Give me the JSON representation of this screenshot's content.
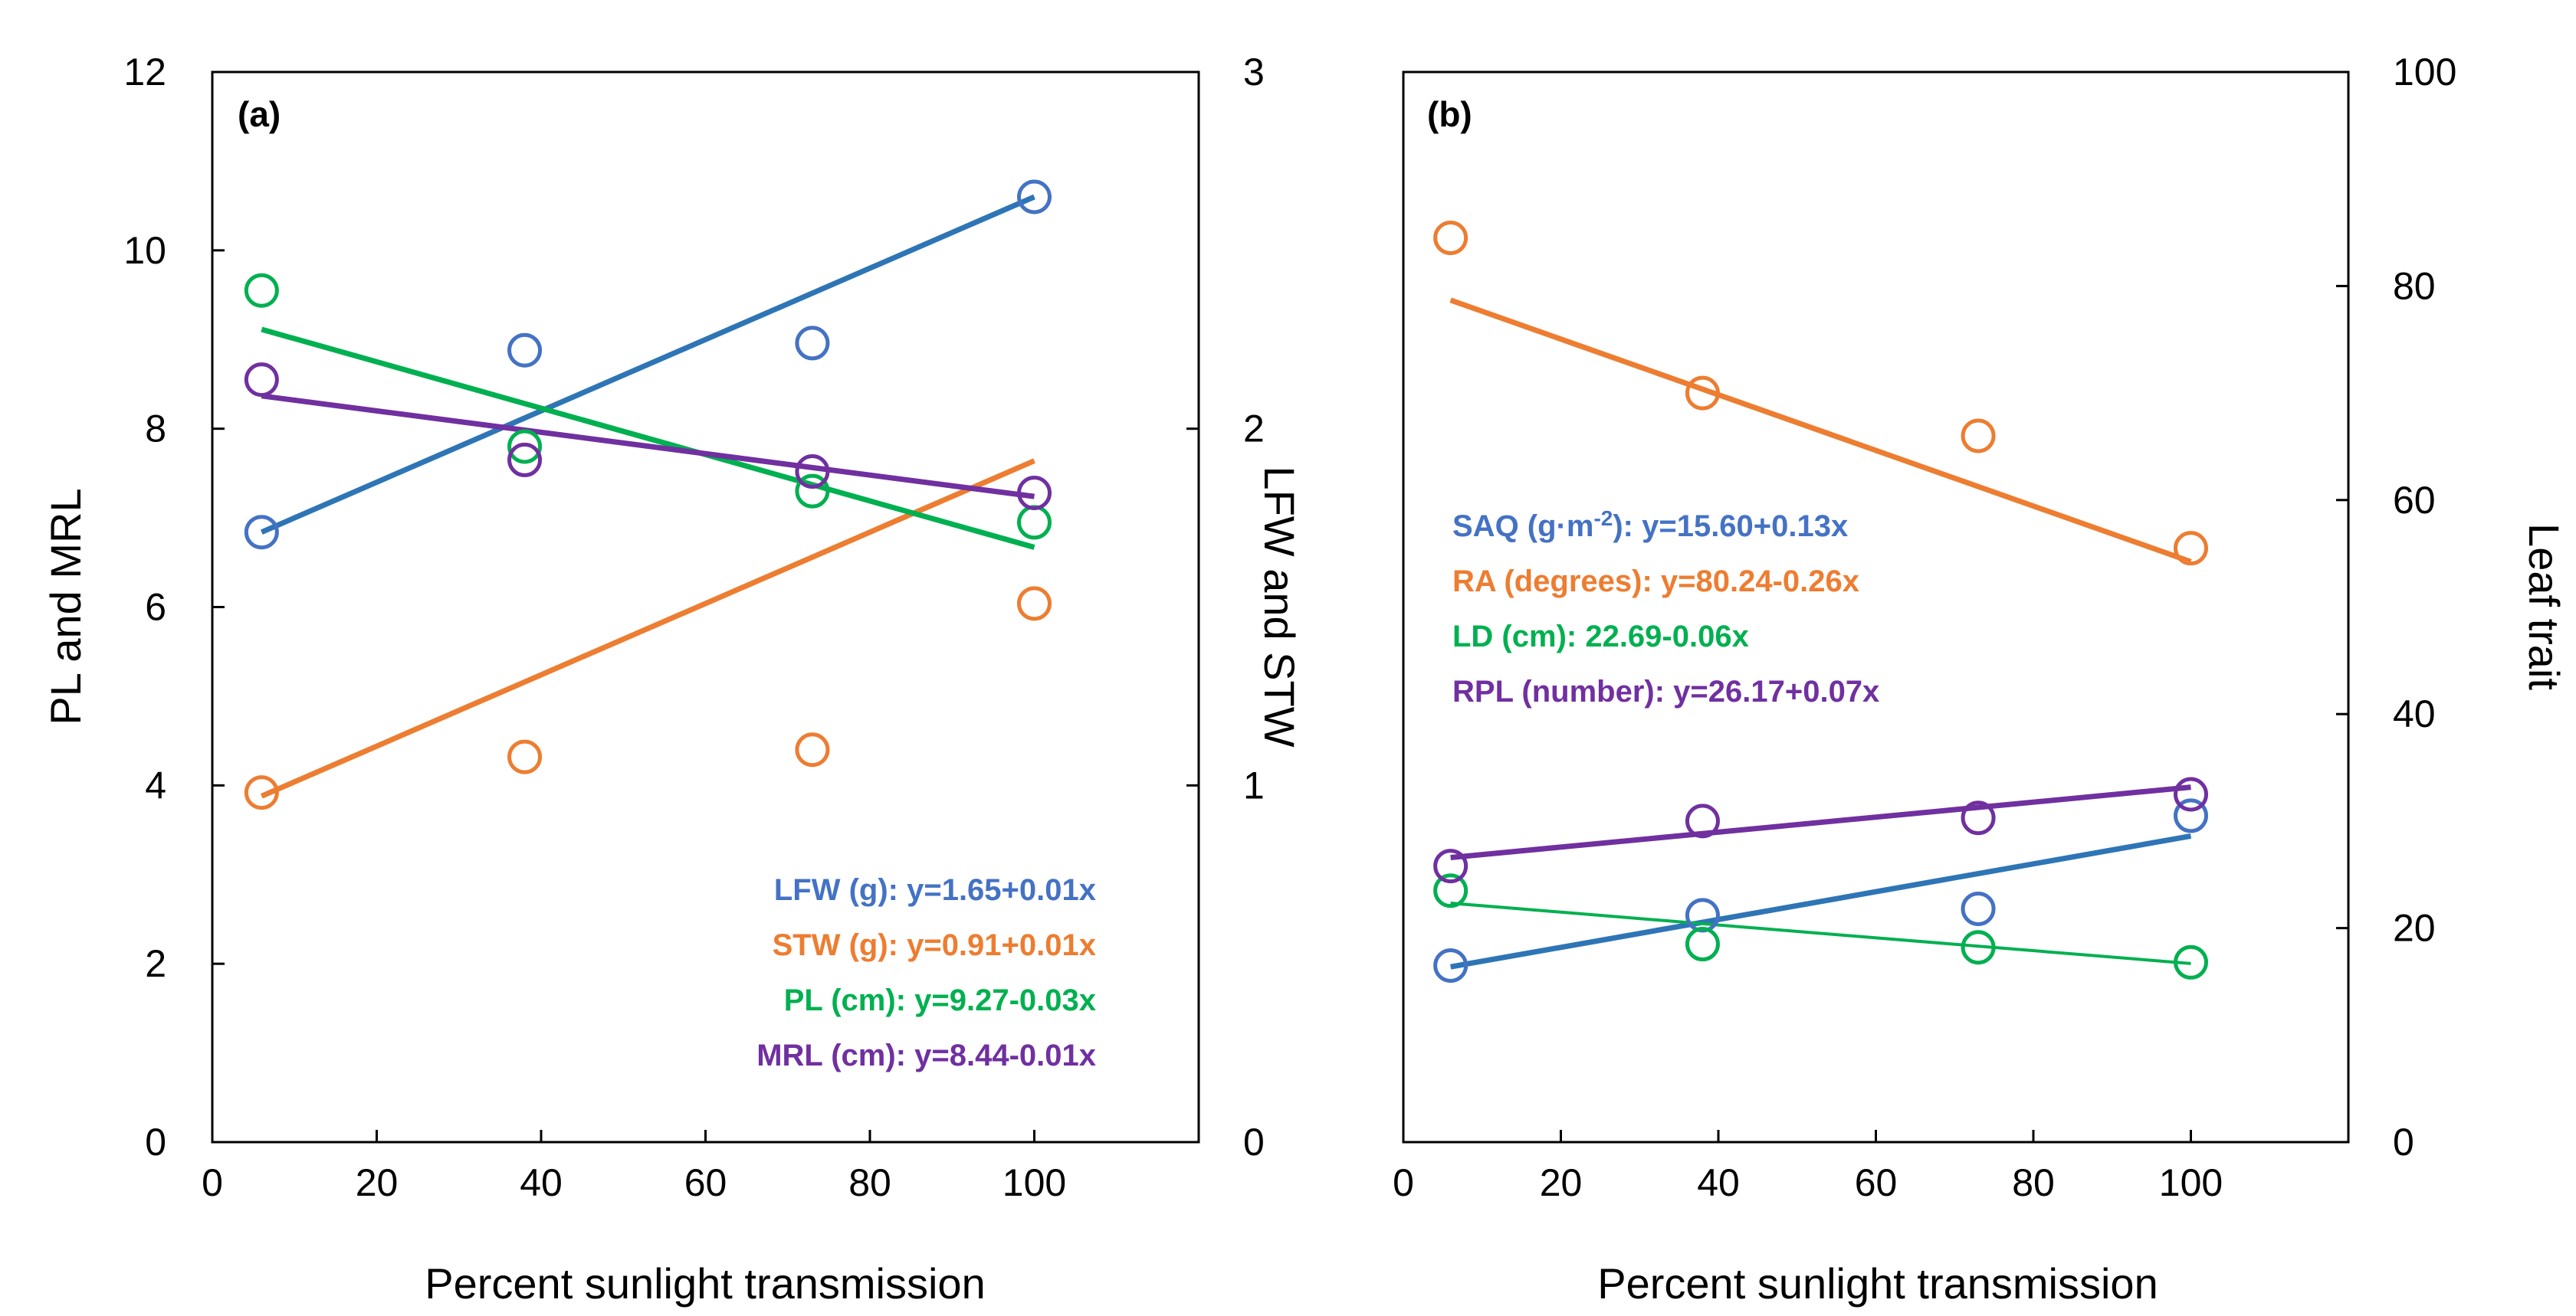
{
  "chart_data": [
    {
      "id": "a",
      "type": "scatter",
      "panel_label": "(a)",
      "xlabel": "Percent sunlight transmission",
      "ylabel_left": "PL and MRL",
      "ylabel_right": "LFW and STW",
      "xlim": [
        0,
        120
      ],
      "ylim_left": [
        0,
        12
      ],
      "ylim_right": [
        0,
        3
      ],
      "x_ticks": [
        0,
        20,
        40,
        60,
        80,
        100
      ],
      "x_tick_labels": [
        "0",
        "20",
        "40",
        "60",
        "80",
        "100"
      ],
      "y_left_ticks": [
        0,
        2,
        4,
        6,
        8,
        10,
        12
      ],
      "y_left_tick_labels": [
        "0",
        "2",
        "4",
        "6",
        "8",
        "10",
        "12"
      ],
      "y_right_ticks": [
        0,
        1,
        2,
        3
      ],
      "y_right_tick_labels": [
        "0",
        "1",
        "2",
        "3"
      ],
      "x": [
        6,
        38,
        73,
        100
      ],
      "series": [
        {
          "name": "LFW",
          "axis": "right",
          "color": "#4472C4",
          "line_color": "#2E75B6",
          "values": [
            1.71,
            2.22,
            2.24,
            2.65
          ],
          "fit": {
            "intercept": 1.65,
            "slope": 0.01
          },
          "equation": "LFW (g): y=1.65+0.01x"
        },
        {
          "name": "STW",
          "axis": "right",
          "color": "#ED7D31",
          "line_color": "#ED7D31",
          "values": [
            0.98,
            1.08,
            1.1,
            1.51
          ],
          "fit": {
            "intercept": 0.91,
            "slope": 0.01
          },
          "equation": "STW (g): y=0.91+0.01x"
        },
        {
          "name": "PL",
          "axis": "left",
          "color": "#00B050",
          "line_color": "#00B050",
          "values": [
            9.55,
            7.8,
            7.3,
            6.95
          ],
          "fit": {
            "intercept": 9.27,
            "slope": -0.026
          },
          "equation": "PL (cm): y=9.27-0.03x"
        },
        {
          "name": "MRL",
          "axis": "left",
          "color": "#7030A0",
          "line_color": "#7030A0",
          "values": [
            8.55,
            7.65,
            7.52,
            7.28
          ],
          "fit": {
            "intercept": 8.44,
            "slope": -0.012
          },
          "equation": "MRL (cm): y=8.44-0.01x"
        }
      ]
    },
    {
      "id": "b",
      "type": "scatter",
      "panel_label": "(b)",
      "xlabel": "Percent sunlight transmission",
      "ylabel_right": "Leaf trait",
      "xlim": [
        0,
        120
      ],
      "ylim_right": [
        0,
        100
      ],
      "x_ticks": [
        0,
        20,
        40,
        60,
        80,
        100
      ],
      "x_tick_labels": [
        "0",
        "20",
        "40",
        "60",
        "80",
        "100"
      ],
      "y_right_ticks": [
        0,
        20,
        40,
        60,
        80,
        100
      ],
      "y_right_tick_labels": [
        "0",
        "20",
        "40",
        "60",
        "80",
        "100"
      ],
      "x": [
        6,
        38,
        73,
        100
      ],
      "series": [
        {
          "name": "SAQ",
          "axis": "right",
          "color": "#4472C4",
          "line_color": "#2E75B6",
          "values": [
            16.5,
            21.2,
            21.8,
            30.5
          ],
          "fit": {
            "intercept": 15.6,
            "slope": 0.13
          },
          "equation_prefix": "SAQ (g·m",
          "equation_sup": "-2",
          "equation_suffix": "): y=15.60+0.13x"
        },
        {
          "name": "RA",
          "axis": "right",
          "color": "#ED7D31",
          "line_color": "#ED7D31",
          "values": [
            84.5,
            70,
            66,
            55.5
          ],
          "fit": {
            "intercept": 80.24,
            "slope": -0.26
          },
          "equation": "RA (degrees): y=80.24-0.26x"
        },
        {
          "name": "LD",
          "axis": "right",
          "color": "#00B050",
          "line_color": "#00B050",
          "values": [
            23.5,
            18.5,
            18.2,
            16.8
          ],
          "fit": {
            "intercept": 22.69,
            "slope": -0.06
          },
          "equation": "LD (cm): 22.69-0.06x"
        },
        {
          "name": "RPL",
          "axis": "right",
          "color": "#7030A0",
          "line_color": "#7030A0",
          "values": [
            25.8,
            30,
            30.3,
            32.5
          ],
          "fit": {
            "intercept": 26.17,
            "slope": 0.07
          },
          "equation": "RPL (number): y=26.17+0.07x"
        }
      ]
    }
  ]
}
